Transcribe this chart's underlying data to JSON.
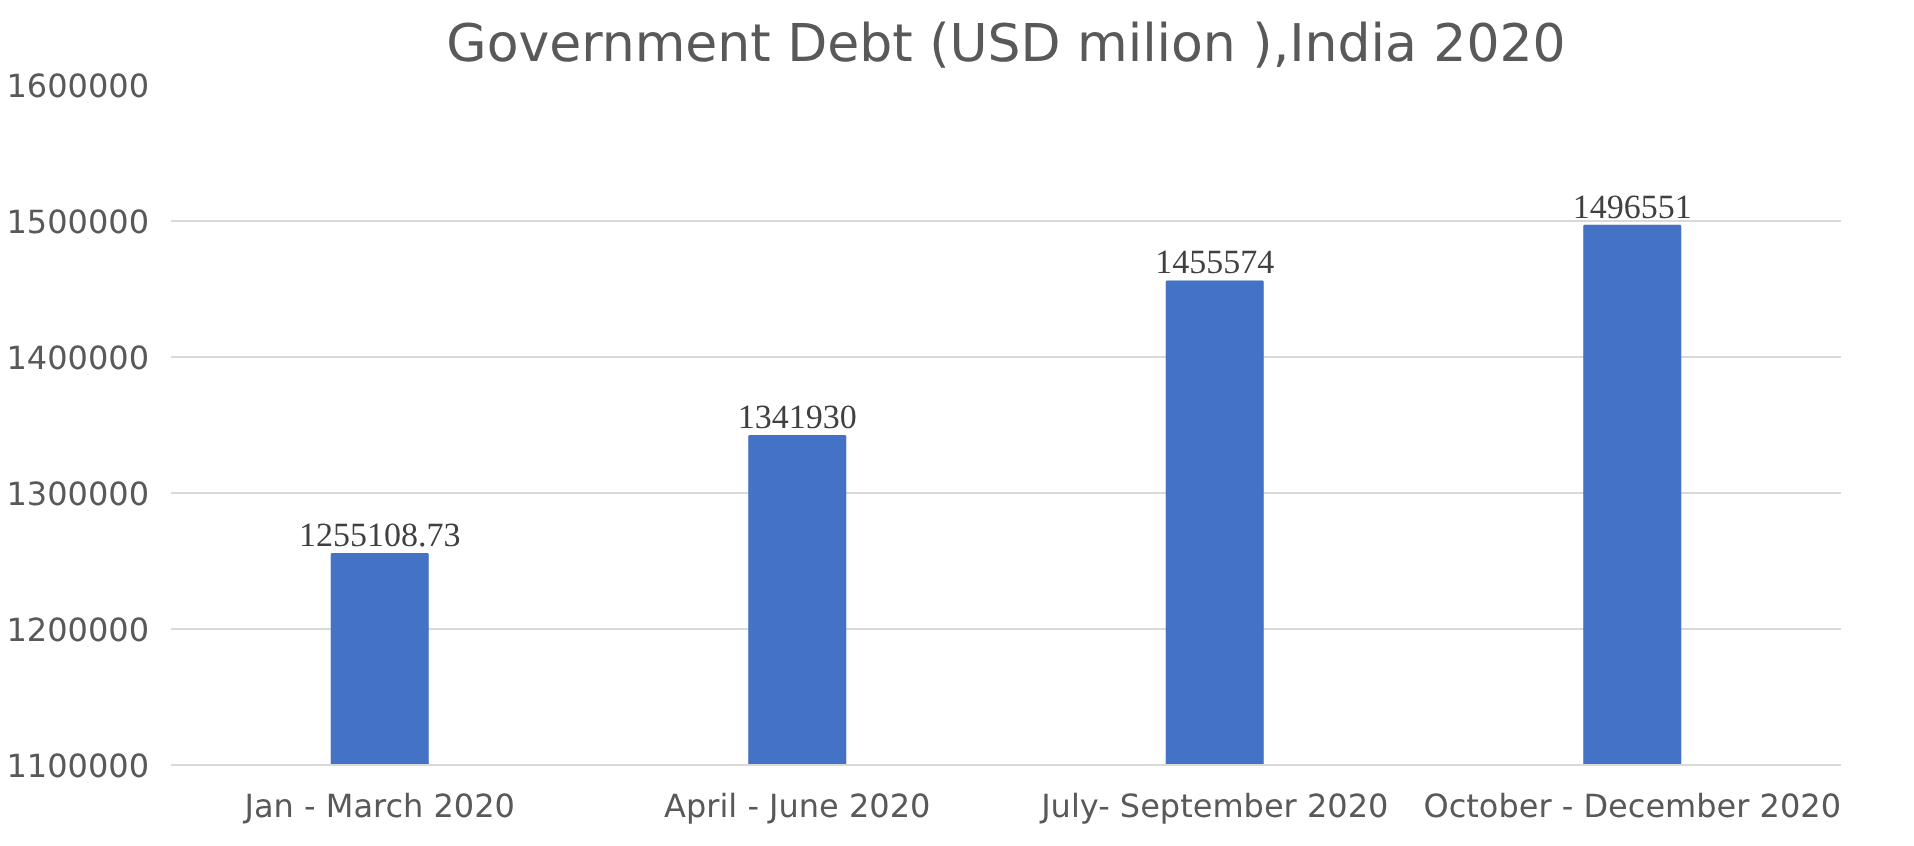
{
  "chart_data": {
    "type": "bar",
    "title": "Government Debt (USD milion ),India 2020",
    "categories": [
      "Jan - March 2020",
      "April - June 2020",
      "July- September 2020",
      "October - December 2020"
    ],
    "values": [
      1255108.73,
      1341930,
      1455574,
      1496551
    ],
    "color": "#4472c4",
    "ylim": [
      1100000,
      1600000
    ],
    "yticks": [
      1100000,
      1200000,
      1300000,
      1400000,
      1500000,
      1600000
    ],
    "grid": "y",
    "data_labels": true
  }
}
